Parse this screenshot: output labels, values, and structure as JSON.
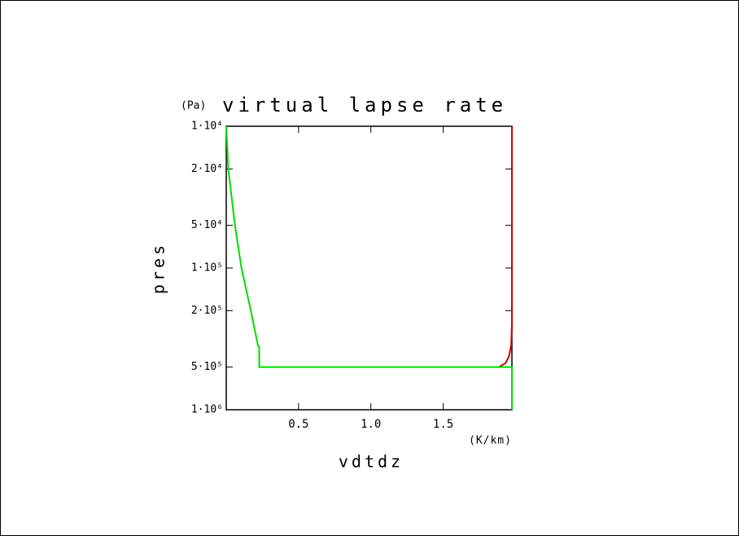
{
  "chart_data": {
    "type": "line",
    "title": "virtual lapse rate",
    "y_unit": "(Pa)",
    "ylabel": "pres",
    "xlabel": "vdtdz",
    "x_unit": "(K/km)",
    "xlim": [
      0,
      1.975
    ],
    "xticks": [
      0.5,
      {
        "value": 1,
        "label": "1.0"
      },
      1.5
    ],
    "ylim": [
      10000,
      1000000
    ],
    "ylog": true,
    "yinvert": true,
    "yticks": [
      {
        "value": 10000,
        "label": "1·10⁴"
      },
      {
        "value": 20000,
        "label": "2·10⁴"
      },
      {
        "value": 50000,
        "label": "5·10⁴"
      },
      {
        "value": 100000,
        "label": "1·10⁵"
      },
      {
        "value": 200000,
        "label": "2·10⁵"
      },
      {
        "value": 500000,
        "label": "5·10⁵"
      },
      {
        "value": 1000000,
        "label": "1·10⁶"
      }
    ],
    "series": [
      {
        "color": "#cc0000",
        "x": [
          1.975,
          1.975,
          1.97,
          1.955,
          1.93,
          1.885
        ],
        "values": [
          10000,
          250000,
          350000,
          420000,
          470000,
          500000
        ]
      },
      {
        "color": "#00dd00",
        "x": [
          0,
          0.014,
          0.06,
          0.105,
          0.17,
          0.22,
          0.228,
          0.228,
          1.975,
          1.975
        ],
        "values": [
          10000,
          20000,
          50000,
          100000,
          200000,
          356000,
          360000,
          500000,
          500000,
          1000000
        ]
      }
    ]
  }
}
